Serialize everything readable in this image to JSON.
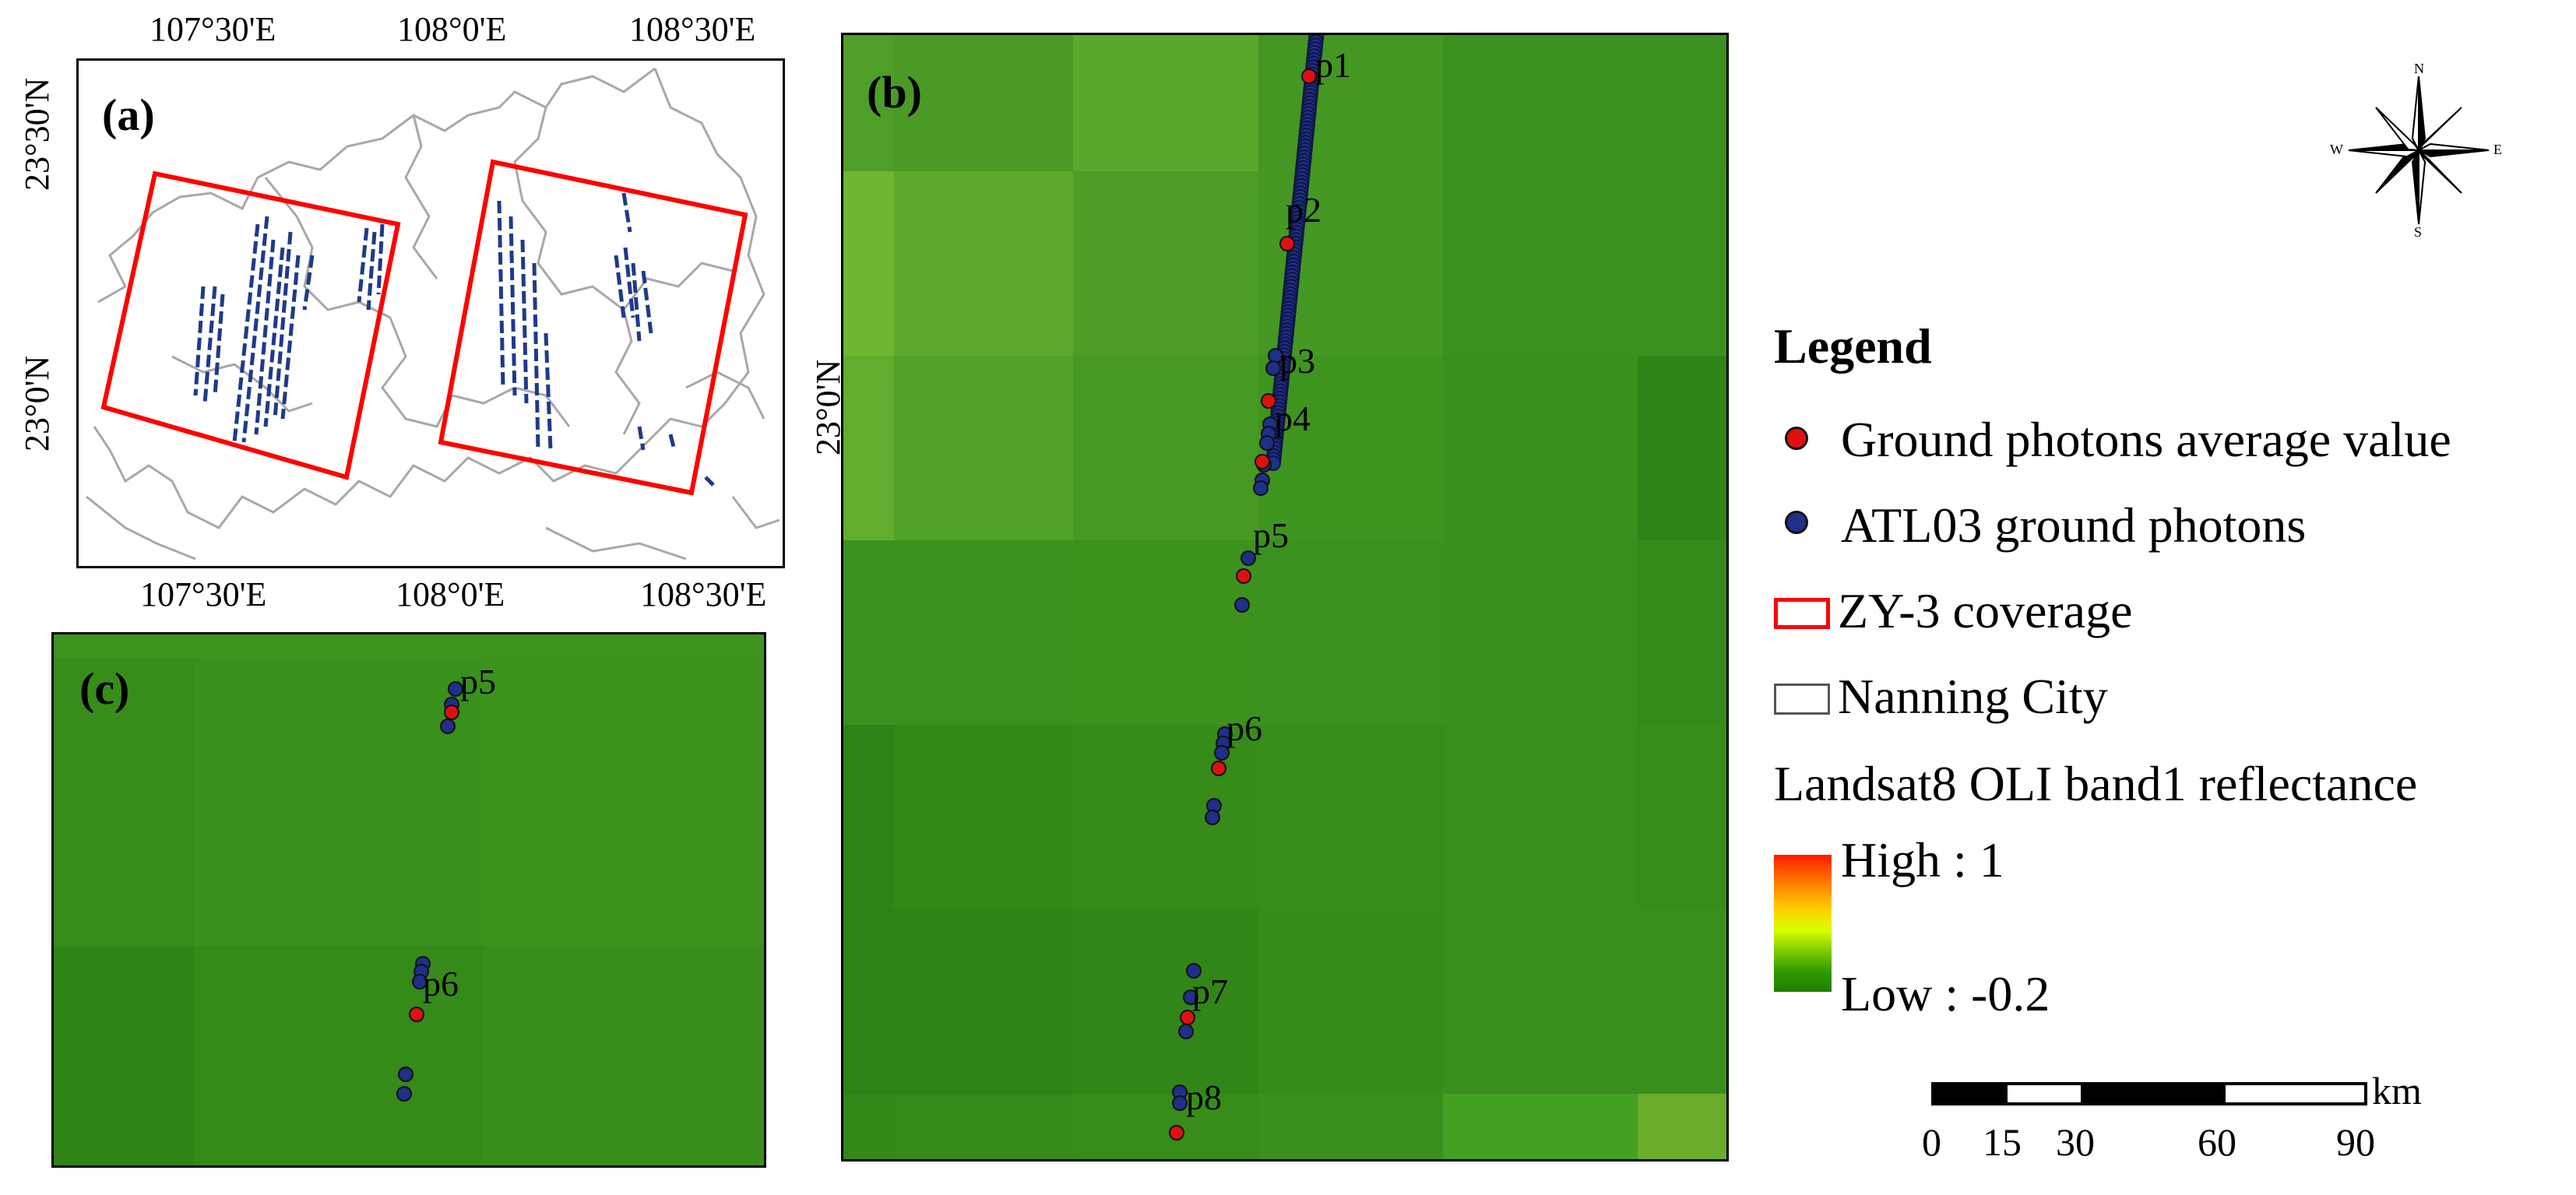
{
  "panels": {
    "a": {
      "label": "(a)"
    },
    "b": {
      "label": "(b)"
    },
    "c": {
      "label": "(c)"
    }
  },
  "axes_a": {
    "top_ticks": [
      "107°30'E",
      "108°0'E",
      "108°30'E"
    ],
    "bottom_ticks": [
      "107°30'E",
      "108°0'E",
      "108°30'E"
    ],
    "left_ticks": [
      "23°30'N",
      "23°0'N"
    ],
    "right_ticks": [
      "23°0'N"
    ]
  },
  "points_b": [
    "p1",
    "p2",
    "p3",
    "p4",
    "p5",
    "p6",
    "p7",
    "p8"
  ],
  "points_c": [
    "p5",
    "p6"
  ],
  "compass": {
    "n": "N",
    "s": "S",
    "e": "E",
    "w": "W"
  },
  "legend": {
    "title": "Legend",
    "items": {
      "red_dot": "Ground photons average value",
      "blue_dot": "ATL03 ground photons",
      "zy3": "ZY-3 coverage",
      "nanning": "Nanning City",
      "landsat": "Landsat8 OLI band1 reflectance",
      "high": "High : 1",
      "low": "Low : -0.2"
    }
  },
  "scalebar": {
    "unit": "km",
    "ticks": [
      "0",
      "15",
      "30",
      "60",
      "90"
    ]
  },
  "colors": {
    "red_dot": "#e01010",
    "blue_dot": "#1f2f8a",
    "zy3_outline": "#ff0000",
    "boundary": "#a8a8a8",
    "green_base": "#2f8a18"
  }
}
